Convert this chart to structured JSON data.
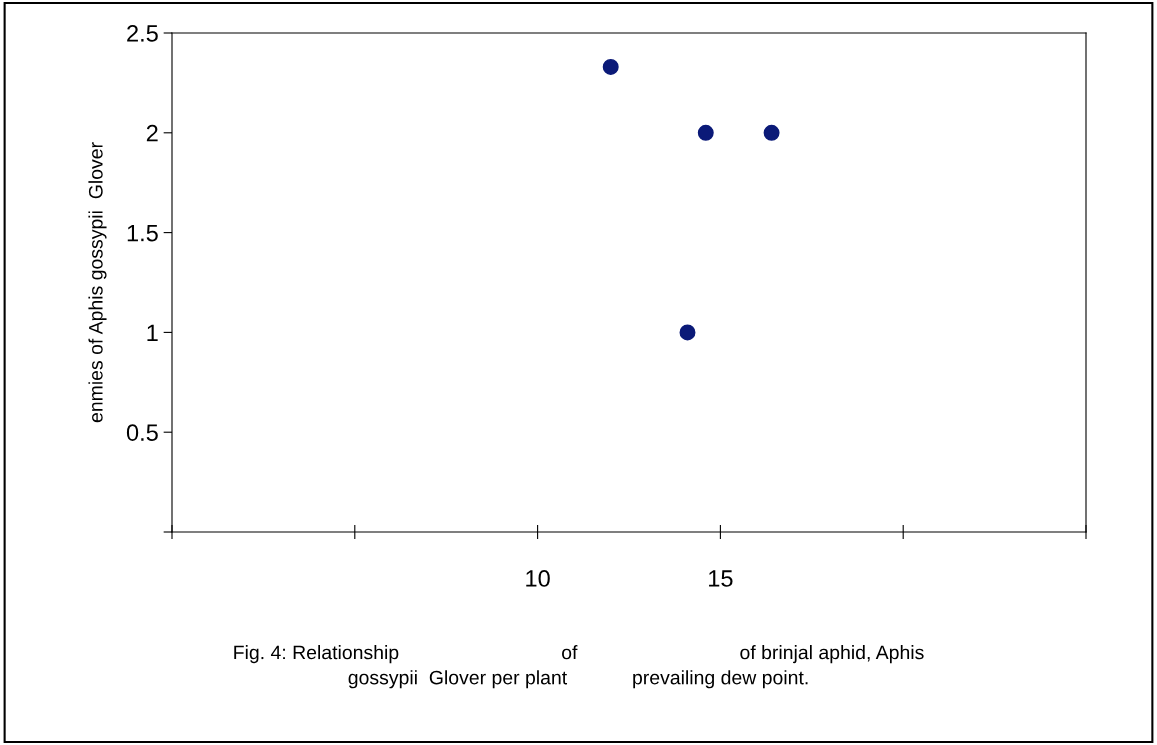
{
  "chart_data": {
    "type": "scatter",
    "ylabel": "enmies of Aphis gossypii  Glover",
    "x": [
      12.0,
      14.6,
      16.4,
      14.1
    ],
    "series": [
      {
        "color": "#0b1a78",
        "values": [
          2.33,
          2.0,
          2.0,
          1.0
        ]
      }
    ],
    "xlim": [
      0,
      25
    ],
    "xticks": [
      {
        "value": 0,
        "label": null
      },
      {
        "value": 5,
        "label": null
      },
      10,
      15,
      {
        "value": 20,
        "label": null
      },
      {
        "value": 25,
        "label": null
      }
    ],
    "ylim": [
      0,
      2.5
    ],
    "yticks": [
      {
        "value": 0,
        "label": null
      },
      0.5,
      1,
      1.5,
      2,
      2.5
    ],
    "marker": "circle",
    "grid": false,
    "legend": false,
    "annotations": [
      "Fig. 4: Relationship                              of                              of brinjal aphid, Aphis\ngossypii  Glover per plant            prevailing dew point."
    ]
  }
}
